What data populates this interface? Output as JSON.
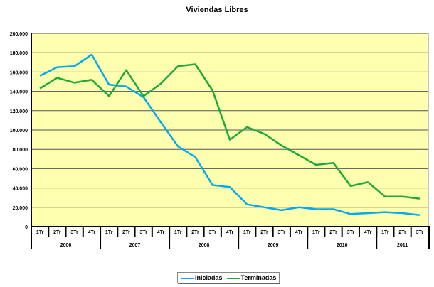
{
  "chart_data": {
    "type": "line",
    "title": "Viviendas Libres",
    "quarters": [
      "1Tr",
      "2Tr",
      "3Tr",
      "4Tr",
      "1Tr",
      "2Tr",
      "3Tr",
      "4Tr",
      "1Tr",
      "2Tr",
      "3Tr",
      "4Tr",
      "1Tr",
      "2Tr",
      "3Tr",
      "4Tr",
      "1Tr",
      "2Tr",
      "3Tr",
      "4Tr",
      "1Tr",
      "2Tr",
      "3Tr"
    ],
    "years": [
      "2006",
      "2007",
      "2008",
      "2009",
      "2010",
      "2011"
    ],
    "ylim": [
      0,
      200000
    ],
    "yticks": [
      "0",
      "20.000",
      "40.000",
      "60.000",
      "80.000",
      "100.000",
      "120.000",
      "140.000",
      "160.000",
      "180.000",
      "200.000"
    ],
    "grid": true,
    "legend_position": "bottom",
    "series": [
      {
        "name": "Iniciadas",
        "color": "#00aaee",
        "values": [
          156000,
          165000,
          166000,
          178000,
          147000,
          145000,
          134000,
          108000,
          83000,
          72000,
          43000,
          41000,
          23000,
          20000,
          17000,
          20000,
          18000,
          18000,
          13000,
          14000,
          15000,
          14000,
          12000
        ]
      },
      {
        "name": "Terminadas",
        "color": "#1aaa3a",
        "values": [
          143000,
          154000,
          149000,
          152000,
          135000,
          162000,
          135000,
          148000,
          166000,
          168000,
          141000,
          90000,
          103000,
          96000,
          84000,
          74000,
          64000,
          66000,
          42000,
          46000,
          31000,
          31000,
          29000
        ]
      }
    ],
    "plot_background": "#ffffb0"
  }
}
